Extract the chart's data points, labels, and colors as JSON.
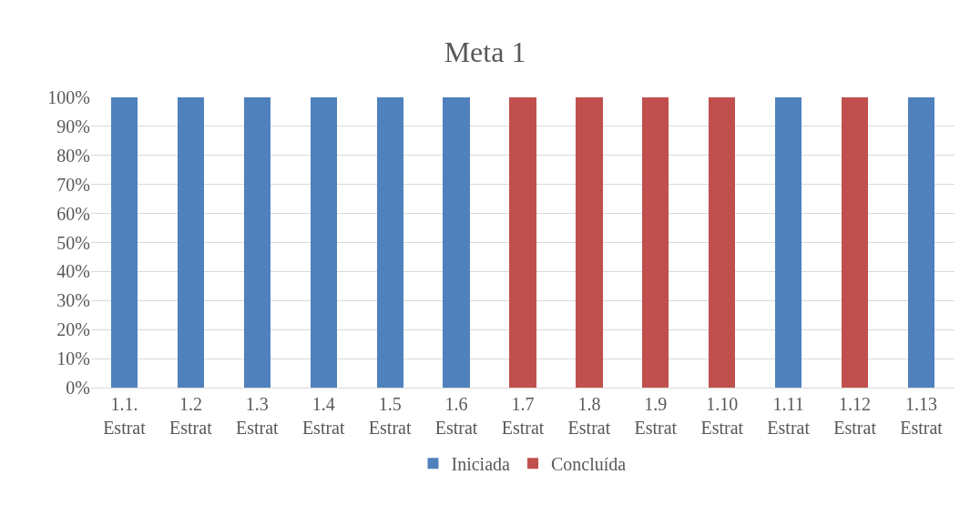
{
  "chart_data": {
    "type": "bar",
    "title": "Meta 1",
    "stacked": true,
    "categories": [
      "1.1.\nEstrat",
      "1.2\nEstrat",
      "1.3\nEstrat",
      "1.4\nEstrat",
      "1.5\nEstrat",
      "1.6\nEstrat",
      "1.7\nEstrat",
      "1.8\nEstrat",
      "1.9\nEstrat",
      "1.10\nEstrat",
      "1.11\nEstrat",
      "1.12\nEstrat",
      "1.13\nEstrat"
    ],
    "series": [
      {
        "name": "Iniciada",
        "color": "#4f81bd",
        "values": [
          100,
          100,
          100,
          100,
          100,
          100,
          null,
          null,
          null,
          null,
          100,
          null,
          100
        ]
      },
      {
        "name": "Concluída",
        "color": "#c0504d",
        "values": [
          null,
          null,
          null,
          null,
          null,
          null,
          100,
          100,
          100,
          100,
          null,
          100,
          null
        ]
      }
    ],
    "ylim": [
      0,
      100
    ],
    "yticks": [
      {
        "value": 0,
        "label": "0%"
      },
      {
        "value": 10,
        "label": "10%"
      },
      {
        "value": 20,
        "label": "20%"
      },
      {
        "value": 30,
        "label": "30%"
      },
      {
        "value": 40,
        "label": "40%"
      },
      {
        "value": 50,
        "label": "50%"
      },
      {
        "value": 60,
        "label": "60%"
      },
      {
        "value": 70,
        "label": "70%"
      },
      {
        "value": 80,
        "label": "80%"
      },
      {
        "value": 90,
        "label": "90%"
      },
      {
        "value": 100,
        "label": "100%"
      }
    ],
    "grid": "y",
    "legend": "bottom"
  }
}
